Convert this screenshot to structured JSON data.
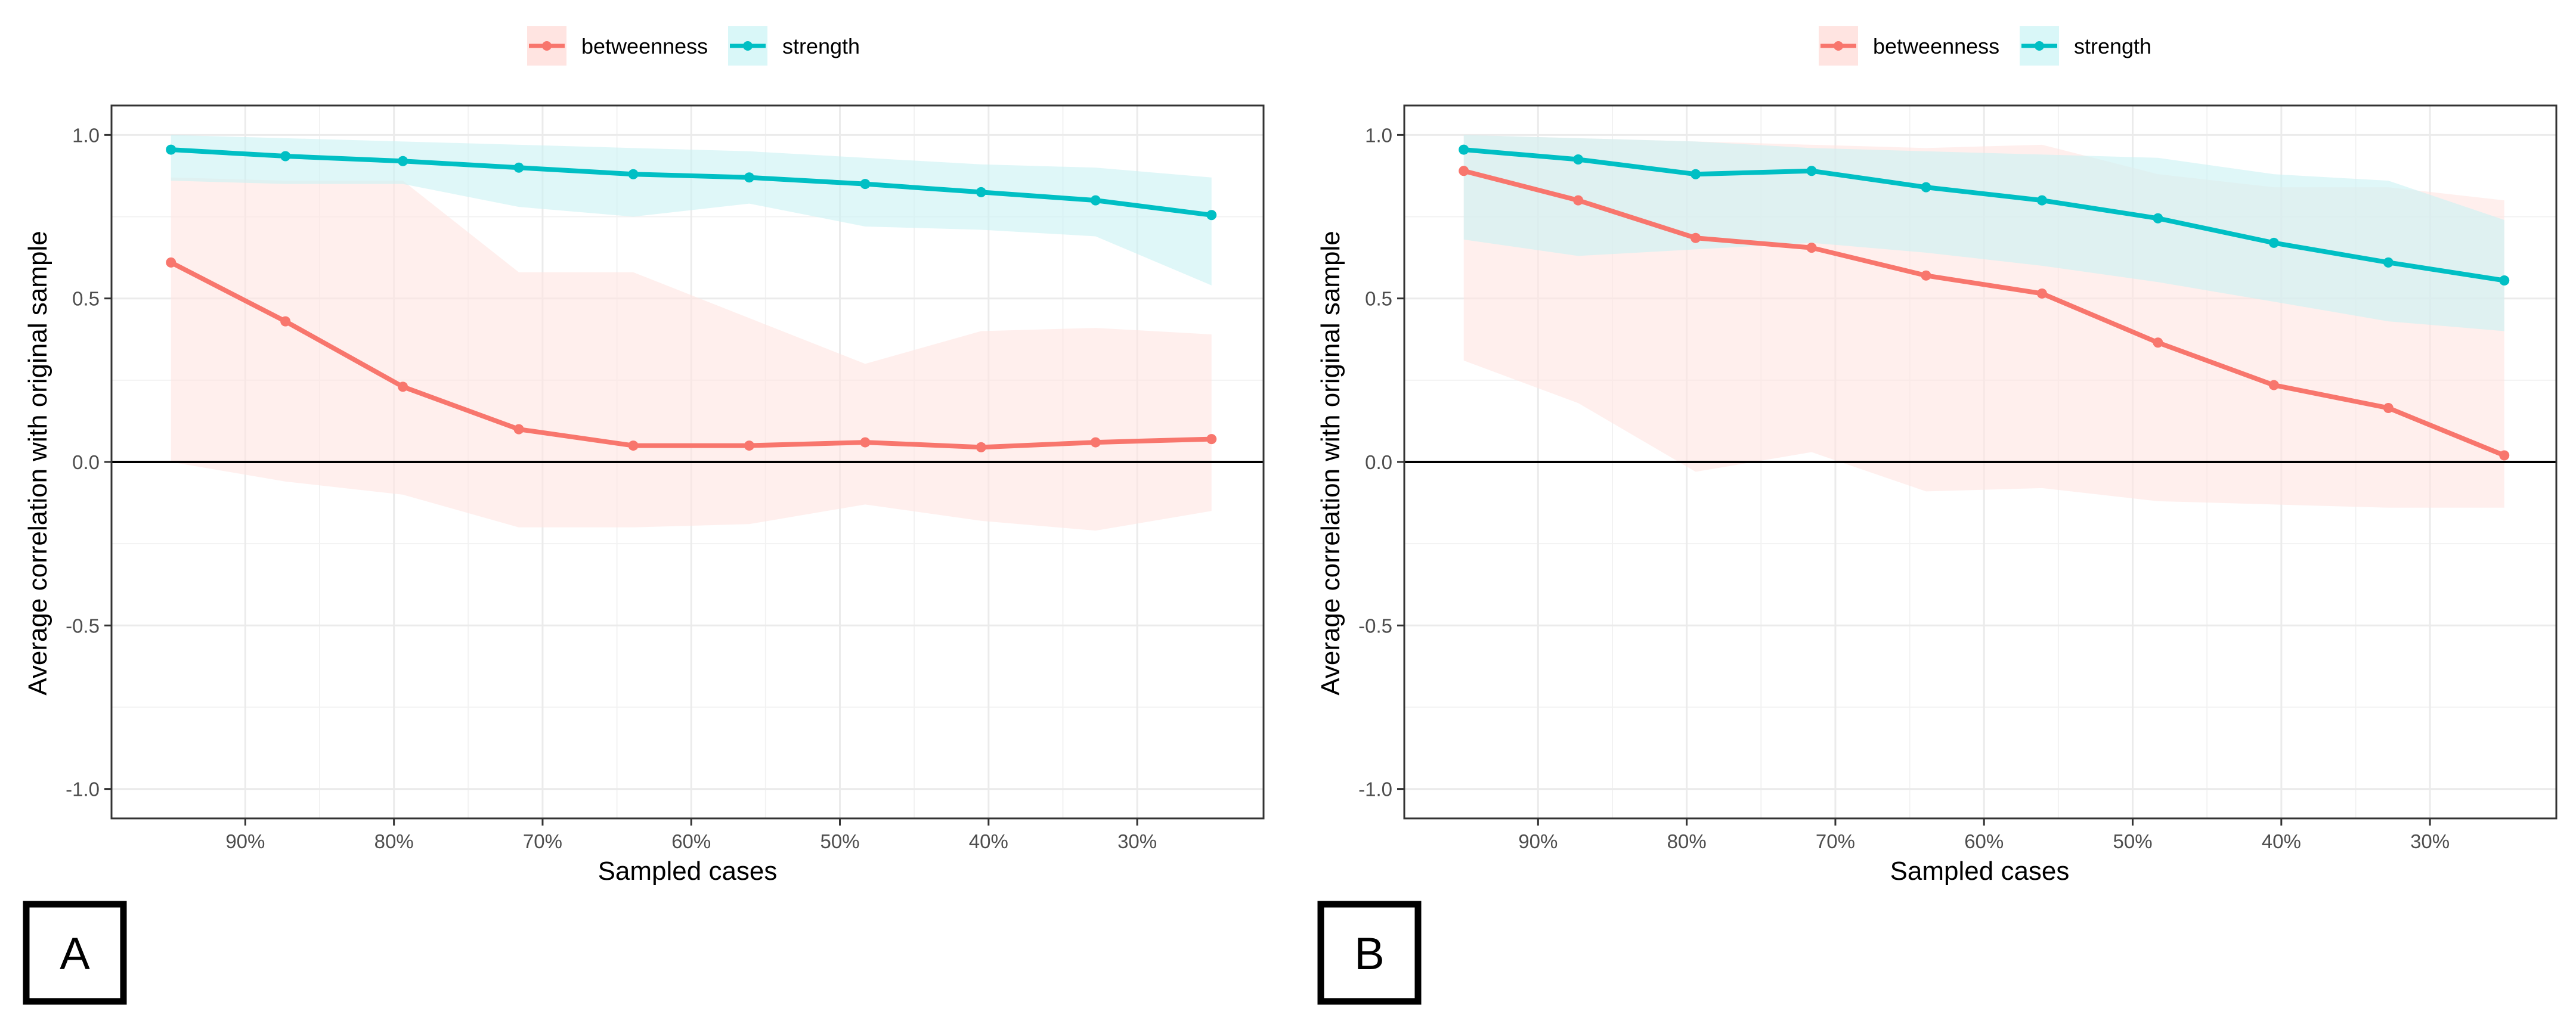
{
  "figure": {
    "panels": [
      {
        "label": "A"
      },
      {
        "label": "B"
      }
    ]
  },
  "chart_data": [
    {
      "type": "line",
      "panel": "A",
      "title": "",
      "xlabel": "Sampled cases",
      "ylabel": "Average correlation with original sample",
      "x_reversed": true,
      "xlim": [
        0.215,
        0.99
      ],
      "ylim": [
        -1.09,
        1.09
      ],
      "x_ticks": [
        0.9,
        0.8,
        0.7,
        0.6,
        0.5,
        0.4,
        0.3
      ],
      "x_tick_labels": [
        "90%",
        "80%",
        "70%",
        "60%",
        "50%",
        "40%",
        "30%"
      ],
      "y_ticks": [
        -1.0,
        -0.5,
        0.0,
        0.5,
        1.0
      ],
      "y_tick_labels": [
        "-1.0",
        "-0.5",
        "0.0",
        "0.5",
        "1.0"
      ],
      "hline": 0,
      "grid": true,
      "legend": "top-center",
      "x": [
        0.95,
        0.873,
        0.794,
        0.716,
        0.639,
        0.561,
        0.483,
        0.405,
        0.328,
        0.25
      ],
      "series": [
        {
          "name": "betweenness",
          "color": "#F8766D",
          "values": [
            0.61,
            0.43,
            0.23,
            0.1,
            0.05,
            0.05,
            0.06,
            0.045,
            0.06,
            0.07
          ],
          "band_upper": [
            0.87,
            0.86,
            0.86,
            0.58,
            0.58,
            0.44,
            0.3,
            0.4,
            0.41,
            0.39
          ],
          "band_lower": [
            0.0,
            -0.06,
            -0.1,
            -0.2,
            -0.2,
            -0.19,
            -0.13,
            -0.18,
            -0.21,
            -0.15
          ]
        },
        {
          "name": "strength",
          "color": "#00BFC4",
          "values": [
            0.955,
            0.935,
            0.92,
            0.9,
            0.88,
            0.87,
            0.85,
            0.825,
            0.8,
            0.755
          ],
          "band_upper": [
            1.0,
            0.99,
            0.98,
            0.97,
            0.96,
            0.95,
            0.93,
            0.91,
            0.9,
            0.87
          ],
          "band_lower": [
            0.86,
            0.85,
            0.85,
            0.78,
            0.75,
            0.79,
            0.72,
            0.71,
            0.69,
            0.54
          ]
        }
      ]
    },
    {
      "type": "line",
      "panel": "B",
      "title": "",
      "xlabel": "Sampled cases",
      "ylabel": "Average correlation with original sample",
      "x_reversed": true,
      "xlim": [
        0.215,
        0.99
      ],
      "ylim": [
        -1.09,
        1.09
      ],
      "x_ticks": [
        0.9,
        0.8,
        0.7,
        0.6,
        0.5,
        0.4,
        0.3
      ],
      "x_tick_labels": [
        "90%",
        "80%",
        "70%",
        "60%",
        "50%",
        "40%",
        "30%"
      ],
      "y_ticks": [
        -1.0,
        -0.5,
        0.0,
        0.5,
        1.0
      ],
      "y_tick_labels": [
        "-1.0",
        "-0.5",
        "0.0",
        "0.5",
        "1.0"
      ],
      "hline": 0,
      "grid": true,
      "legend": "top-center",
      "x": [
        0.95,
        0.873,
        0.794,
        0.716,
        0.639,
        0.561,
        0.483,
        0.405,
        0.328,
        0.25
      ],
      "series": [
        {
          "name": "betweenness",
          "color": "#F8766D",
          "values": [
            0.89,
            0.8,
            0.685,
            0.655,
            0.57,
            0.515,
            0.365,
            0.235,
            0.165,
            0.02
          ],
          "band_upper": [
            1.0,
            0.99,
            0.98,
            0.97,
            0.96,
            0.97,
            0.88,
            0.84,
            0.84,
            0.8
          ],
          "band_lower": [
            0.31,
            0.18,
            -0.03,
            0.03,
            -0.09,
            -0.08,
            -0.12,
            -0.13,
            -0.14,
            -0.14
          ]
        },
        {
          "name": "strength",
          "color": "#00BFC4",
          "values": [
            0.955,
            0.925,
            0.88,
            0.89,
            0.84,
            0.8,
            0.745,
            0.67,
            0.61,
            0.555
          ],
          "band_upper": [
            1.0,
            0.99,
            0.98,
            0.96,
            0.95,
            0.94,
            0.93,
            0.88,
            0.86,
            0.74
          ],
          "band_lower": [
            0.68,
            0.63,
            0.65,
            0.67,
            0.64,
            0.6,
            0.55,
            0.49,
            0.43,
            0.4
          ]
        }
      ]
    }
  ]
}
